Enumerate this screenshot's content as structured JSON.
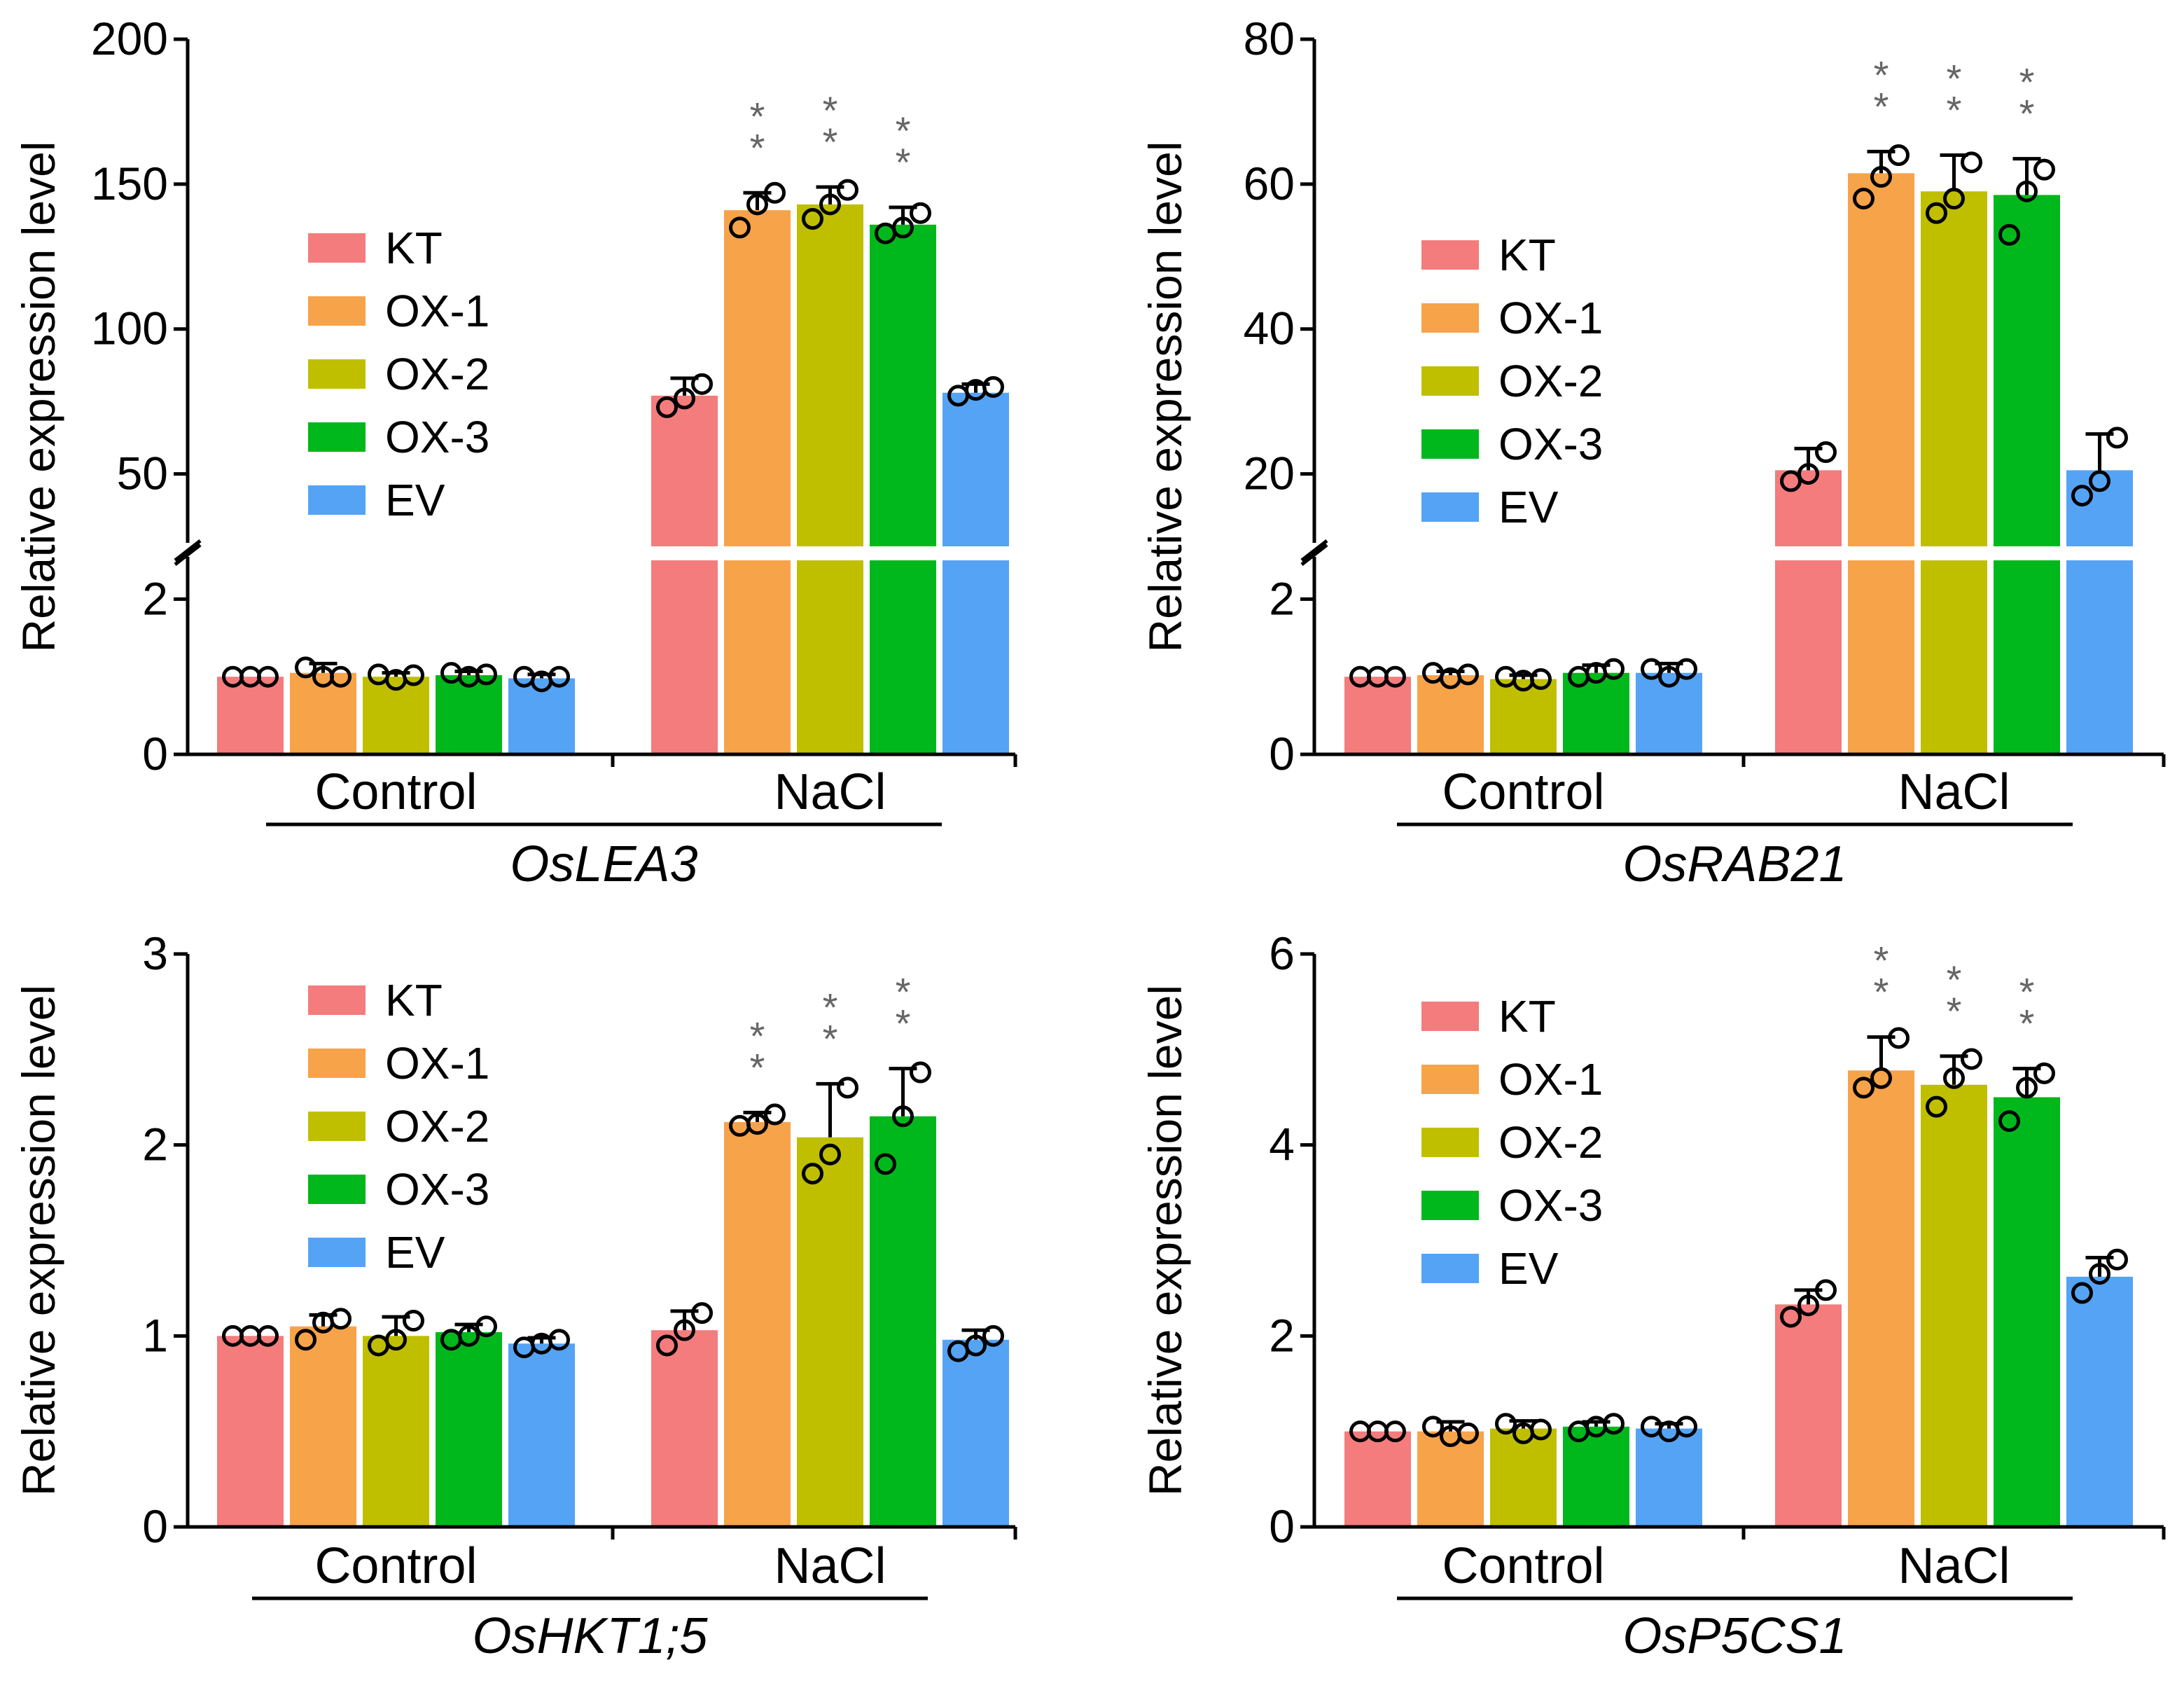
{
  "figure": {
    "y_axis_label": "Relative expression level",
    "significance_mark": "**"
  },
  "legend": [
    {
      "name": "KT",
      "color": "#f47c7c"
    },
    {
      "name": "OX-1",
      "color": "#f7a34a"
    },
    {
      "name": "OX-2",
      "color": "#bfbf00"
    },
    {
      "name": "OX-3",
      "color": "#00b81c"
    },
    {
      "name": "EV",
      "color": "#55a3f5"
    }
  ],
  "chart_data": [
    {
      "type": "bar",
      "gene": "OsLEA3",
      "title": "OsLEA3",
      "xlabel": "",
      "ylabel": "Relative expression level",
      "categories": [
        "Control",
        "NaCl"
      ],
      "y_broken": true,
      "lower_range": [
        0,
        2.5
      ],
      "lower_ticks": [
        0,
        2
      ],
      "upper_range": [
        25,
        200
      ],
      "upper_ticks": [
        50,
        100,
        150,
        200
      ],
      "series": [
        {
          "name": "KT",
          "values": [
            1.0,
            77
          ],
          "error": [
            0,
            6
          ],
          "points": [
            [
              1.0,
              1.0,
              1.0
            ],
            [
              73,
              76,
              81
            ]
          ],
          "sig": [
            false,
            false
          ]
        },
        {
          "name": "OX-1",
          "values": [
            1.05,
            141
          ],
          "error": [
            0.12,
            6
          ],
          "points": [
            [
              1.12,
              1.0,
              1.0
            ],
            [
              135,
              143,
              147
            ]
          ],
          "sig": [
            false,
            true
          ]
        },
        {
          "name": "OX-2",
          "values": [
            1.0,
            143
          ],
          "error": [
            0.05,
            6
          ],
          "points": [
            [
              1.03,
              0.96,
              1.02
            ],
            [
              138,
              143,
              148
            ]
          ],
          "sig": [
            false,
            true
          ]
        },
        {
          "name": "OX-3",
          "values": [
            1.02,
            136
          ],
          "error": [
            0.05,
            6
          ],
          "points": [
            [
              1.05,
              1.0,
              1.03
            ],
            [
              133,
              135,
              140
            ]
          ],
          "sig": [
            false,
            true
          ]
        },
        {
          "name": "EV",
          "values": [
            0.98,
            78
          ],
          "error": [
            0.05,
            3
          ],
          "points": [
            [
              1.0,
              0.94,
              1.0
            ],
            [
              77,
              79,
              80
            ]
          ],
          "sig": [
            false,
            false
          ]
        }
      ]
    },
    {
      "type": "bar",
      "gene": "OsRAB21",
      "title": "OsRAB21",
      "xlabel": "",
      "ylabel": "Relative expression level",
      "categories": [
        "Control",
        "NaCl"
      ],
      "y_broken": true,
      "lower_range": [
        0,
        2.5
      ],
      "lower_ticks": [
        0,
        2
      ],
      "upper_range": [
        10,
        80
      ],
      "upper_ticks": [
        20,
        40,
        60,
        80
      ],
      "series": [
        {
          "name": "KT",
          "values": [
            1.0,
            20.5
          ],
          "error": [
            0,
            3
          ],
          "points": [
            [
              1.0,
              1.0,
              1.0
            ],
            [
              19,
              20,
              23
            ]
          ],
          "sig": [
            false,
            false
          ]
        },
        {
          "name": "OX-1",
          "values": [
            1.02,
            61.5
          ],
          "error": [
            0.05,
            3
          ],
          "points": [
            [
              1.05,
              0.98,
              1.03
            ],
            [
              58,
              61,
              64
            ]
          ],
          "sig": [
            false,
            true
          ]
        },
        {
          "name": "OX-2",
          "values": [
            0.97,
            59
          ],
          "error": [
            0.05,
            5
          ],
          "points": [
            [
              1.0,
              0.95,
              0.97
            ],
            [
              56,
              58,
              63
            ]
          ],
          "sig": [
            false,
            true
          ]
        },
        {
          "name": "OX-3",
          "values": [
            1.05,
            58.5
          ],
          "error": [
            0.1,
            5
          ],
          "points": [
            [
              1.0,
              1.05,
              1.1
            ],
            [
              53,
              59,
              62
            ]
          ],
          "sig": [
            false,
            true
          ]
        },
        {
          "name": "EV",
          "values": [
            1.05,
            20.5
          ],
          "error": [
            0.12,
            5
          ],
          "points": [
            [
              1.1,
              1.0,
              1.1
            ],
            [
              17,
              19,
              25
            ]
          ],
          "sig": [
            false,
            false
          ]
        }
      ]
    },
    {
      "type": "bar",
      "gene": "OsHKT1;5",
      "title": "OsHKT1;5",
      "xlabel": "",
      "ylabel": "Relative expression level",
      "categories": [
        "Control",
        "NaCl"
      ],
      "y_broken": false,
      "ylim": [
        0,
        3
      ],
      "ticks": [
        0,
        1,
        2,
        3
      ],
      "series": [
        {
          "name": "KT",
          "values": [
            1.0,
            1.03
          ],
          "error": [
            0,
            0.1
          ],
          "points": [
            [
              1.0,
              1.0,
              1.0
            ],
            [
              0.95,
              1.03,
              1.12
            ]
          ],
          "sig": [
            false,
            false
          ]
        },
        {
          "name": "OX-1",
          "values": [
            1.05,
            2.12
          ],
          "error": [
            0.06,
            0.05
          ],
          "points": [
            [
              0.98,
              1.07,
              1.09
            ],
            [
              2.1,
              2.11,
              2.16
            ]
          ],
          "sig": [
            false,
            true
          ]
        },
        {
          "name": "OX-2",
          "values": [
            1.0,
            2.04
          ],
          "error": [
            0.1,
            0.28
          ],
          "points": [
            [
              0.95,
              0.98,
              1.08
            ],
            [
              1.85,
              1.95,
              2.3
            ]
          ],
          "sig": [
            false,
            true
          ]
        },
        {
          "name": "OX-3",
          "values": [
            1.02,
            2.15
          ],
          "error": [
            0.04,
            0.25
          ],
          "points": [
            [
              0.98,
              1.0,
              1.05
            ],
            [
              1.9,
              2.15,
              2.38
            ]
          ],
          "sig": [
            false,
            true
          ]
        },
        {
          "name": "EV",
          "values": [
            0.96,
            0.98
          ],
          "error": [
            0.03,
            0.05
          ],
          "points": [
            [
              0.94,
              0.96,
              0.98
            ],
            [
              0.92,
              0.95,
              1.0
            ]
          ],
          "sig": [
            false,
            false
          ]
        }
      ]
    },
    {
      "type": "bar",
      "gene": "OsP5CS1",
      "title": "OsP5CS1",
      "xlabel": "",
      "ylabel": "Relative expression level",
      "categories": [
        "Control",
        "NaCl"
      ],
      "y_broken": false,
      "ylim": [
        0,
        6
      ],
      "ticks": [
        0,
        2,
        4,
        6
      ],
      "series": [
        {
          "name": "KT",
          "values": [
            1.0,
            2.33
          ],
          "error": [
            0,
            0.15
          ],
          "points": [
            [
              1.0,
              1.0,
              1.0
            ],
            [
              2.2,
              2.32,
              2.48
            ]
          ],
          "sig": [
            false,
            false
          ]
        },
        {
          "name": "OX-1",
          "values": [
            1.0,
            4.78
          ],
          "error": [
            0.1,
            0.35
          ],
          "points": [
            [
              1.05,
              0.95,
              0.98
            ],
            [
              4.6,
              4.7,
              5.12
            ]
          ],
          "sig": [
            false,
            true
          ]
        },
        {
          "name": "OX-2",
          "values": [
            1.03,
            4.63
          ],
          "error": [
            0.08,
            0.3
          ],
          "points": [
            [
              1.08,
              0.98,
              1.02
            ],
            [
              4.4,
              4.7,
              4.9
            ]
          ],
          "sig": [
            false,
            true
          ]
        },
        {
          "name": "OX-3",
          "values": [
            1.05,
            4.5
          ],
          "error": [
            0.05,
            0.3
          ],
          "points": [
            [
              1.0,
              1.05,
              1.08
            ],
            [
              4.25,
              4.6,
              4.75
            ]
          ],
          "sig": [
            false,
            true
          ]
        },
        {
          "name": "EV",
          "values": [
            1.03,
            2.62
          ],
          "error": [
            0.05,
            0.2
          ],
          "points": [
            [
              1.05,
              1.0,
              1.05
            ],
            [
              2.45,
              2.65,
              2.8
            ]
          ],
          "sig": [
            false,
            false
          ]
        }
      ]
    }
  ]
}
